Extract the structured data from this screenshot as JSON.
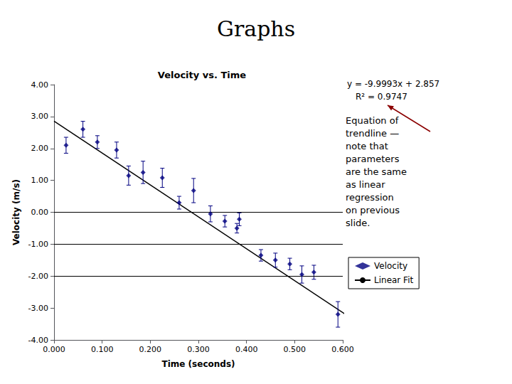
{
  "chart_data": {
    "type": "scatter",
    "title": "Graphs",
    "subtitle": "Velocity vs. Time",
    "xlabel": "Time (seconds)",
    "ylabel": "Velocity (m/s)",
    "xlim": [
      0.0,
      0.6
    ],
    "ylim": [
      -4.0,
      4.0
    ],
    "xticks": [
      {
        "value": 0.0,
        "label": "0.000"
      },
      {
        "value": 0.1,
        "label": "0.100"
      },
      {
        "value": 0.2,
        "label": "0.200"
      },
      {
        "value": 0.3,
        "label": "0.300"
      },
      {
        "value": 0.4,
        "label": "0.400"
      },
      {
        "value": 0.5,
        "label": "0.500"
      },
      {
        "value": 0.6,
        "label": "0.600"
      }
    ],
    "yticks": [
      {
        "value": -4.0,
        "label": "-4.00"
      },
      {
        "value": -3.0,
        "label": "-3.00"
      },
      {
        "value": -2.0,
        "label": "-2.00"
      },
      {
        "value": -1.0,
        "label": "-1.00"
      },
      {
        "value": 0.0,
        "label": "0.00"
      },
      {
        "value": 1.0,
        "label": "1.00"
      },
      {
        "value": 2.0,
        "label": "2.00"
      },
      {
        "value": 3.0,
        "label": "3.00"
      },
      {
        "value": 4.0,
        "label": "4.00"
      }
    ],
    "grid": false,
    "legend": "right",
    "series": [
      {
        "name": "Velocity",
        "type": "scatter",
        "marker": "diamond",
        "color": "#000080",
        "x": [
          0.025,
          0.06,
          0.09,
          0.13,
          0.155,
          0.185,
          0.225,
          0.26,
          0.29,
          0.325,
          0.355,
          0.38,
          0.385,
          0.43,
          0.46,
          0.49,
          0.515,
          0.54,
          0.59
        ],
        "values": [
          2.1,
          2.6,
          2.2,
          1.95,
          1.15,
          1.25,
          1.08,
          0.3,
          0.68,
          -0.05,
          -0.28,
          -0.5,
          -0.22,
          -1.35,
          -1.5,
          -1.62,
          -1.95,
          -1.88,
          -3.2
        ],
        "errors": [
          0.25,
          0.25,
          0.2,
          0.25,
          0.3,
          0.35,
          0.3,
          0.2,
          0.38,
          0.25,
          0.18,
          0.15,
          0.2,
          0.18,
          0.22,
          0.18,
          0.27,
          0.22,
          0.4
        ]
      },
      {
        "name": "Linear Fit",
        "type": "line",
        "line_style": "solid",
        "color": "#000000",
        "x": [
          0.0,
          0.62
        ],
        "values": [
          2.857,
          -3.342566
        ]
      }
    ],
    "reference_lines": [
      {
        "y": 0.0,
        "color": "#000000"
      },
      {
        "y": -1.0,
        "color": "#000000"
      },
      {
        "y": -2.0,
        "color": "#000000"
      }
    ],
    "annotations": [
      {
        "text": "y = -9.9993x + 2.857"
      },
      {
        "text": "R² = 0.9747"
      },
      {
        "text": "Equation of\ntrendline —\nnote that\nparameters\nare the same\nas linear\nregression\non previous\nslide.",
        "arrow_color": "#8B0000"
      }
    ]
  }
}
